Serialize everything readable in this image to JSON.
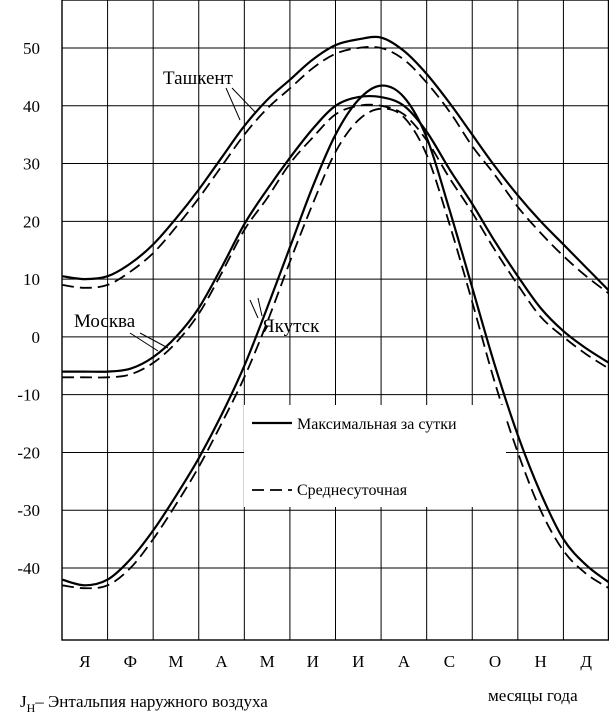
{
  "chart_data": {
    "type": "line",
    "categories": [
      "Я",
      "Ф",
      "М",
      "А",
      "М",
      "И",
      "И",
      "А",
      "С",
      "О",
      "Н",
      "Д"
    ],
    "x": [
      0,
      0.5,
      1,
      1.5,
      2,
      2.5,
      3,
      3.5,
      4,
      4.5,
      5,
      5.5,
      6,
      6.5,
      7,
      7.5,
      8,
      8.5,
      9,
      9.5,
      10,
      10.5,
      11,
      11.5,
      12
    ],
    "ylim": [
      -43,
      50
    ],
    "yticks": [
      50,
      40,
      30,
      20,
      10,
      0,
      -10,
      -20,
      -30,
      -40
    ],
    "grid": true,
    "series": [
      {
        "group": "Ташкент",
        "style": "solid",
        "values": [
          10.5,
          10,
          10.5,
          12.7,
          16,
          20.5,
          25.5,
          31,
          36.5,
          41,
          44.5,
          48,
          50.5,
          51.5,
          51.8,
          49.5,
          45.5,
          40.5,
          35,
          29.5,
          24.5,
          20,
          16,
          12,
          8
        ]
      },
      {
        "group": "Ташкент",
        "style": "dashed",
        "values": [
          9,
          8.5,
          9,
          11.3,
          14.5,
          19,
          24,
          29.5,
          35,
          39.5,
          43,
          46.5,
          49,
          50,
          50,
          48,
          44,
          39,
          33,
          28,
          22.5,
          18,
          14,
          10.5,
          7.5
        ]
      },
      {
        "group": "Москва",
        "style": "solid",
        "values": [
          -6,
          -6,
          -6,
          -5.5,
          -3.5,
          0,
          5,
          12,
          19.5,
          25.5,
          31,
          36,
          40,
          41.5,
          41.5,
          40,
          35.5,
          29,
          23,
          16.5,
          10.5,
          5,
          1,
          -2,
          -4.5
        ]
      },
      {
        "group": "Москва",
        "style": "dashed",
        "values": [
          -7,
          -7,
          -7,
          -6.5,
          -4.5,
          -1,
          4,
          11,
          18.5,
          24,
          30,
          34.5,
          38.5,
          40,
          40,
          38.5,
          34,
          27.5,
          21.5,
          15,
          9,
          3.5,
          0,
          -3,
          -5.5
        ]
      },
      {
        "group": "Якутск",
        "style": "solid",
        "values": [
          -42,
          -43,
          -42,
          -38.5,
          -33.5,
          -27.5,
          -21,
          -13.5,
          -5,
          5,
          15.5,
          26,
          35,
          41,
          43.5,
          41.5,
          34.5,
          22,
          8.5,
          -5,
          -17,
          -27,
          -35,
          -39.5,
          -42.5
        ]
      },
      {
        "group": "Якутск",
        "style": "dashed",
        "values": [
          -43,
          -43.5,
          -43,
          -40,
          -35,
          -29,
          -22.5,
          -15,
          -7,
          2.5,
          13,
          23,
          32,
          37.5,
          39.5,
          38,
          31.5,
          19.5,
          6,
          -8,
          -20,
          -30,
          -37,
          -41,
          -43.5
        ]
      }
    ],
    "labels": {
      "tashkent": "Ташкент",
      "moscow": "Москва",
      "yakutsk": "Якутск"
    },
    "legend": {
      "placement": "center-right",
      "solid": "Максимальная за сутки",
      "dashed": "Среднесуточная"
    },
    "ylabel": "J",
    "ylabel_sub": "Н",
    "ylabel_text": "– Энтальпия наружного воздуха",
    "xlabel": "месяцы года"
  }
}
